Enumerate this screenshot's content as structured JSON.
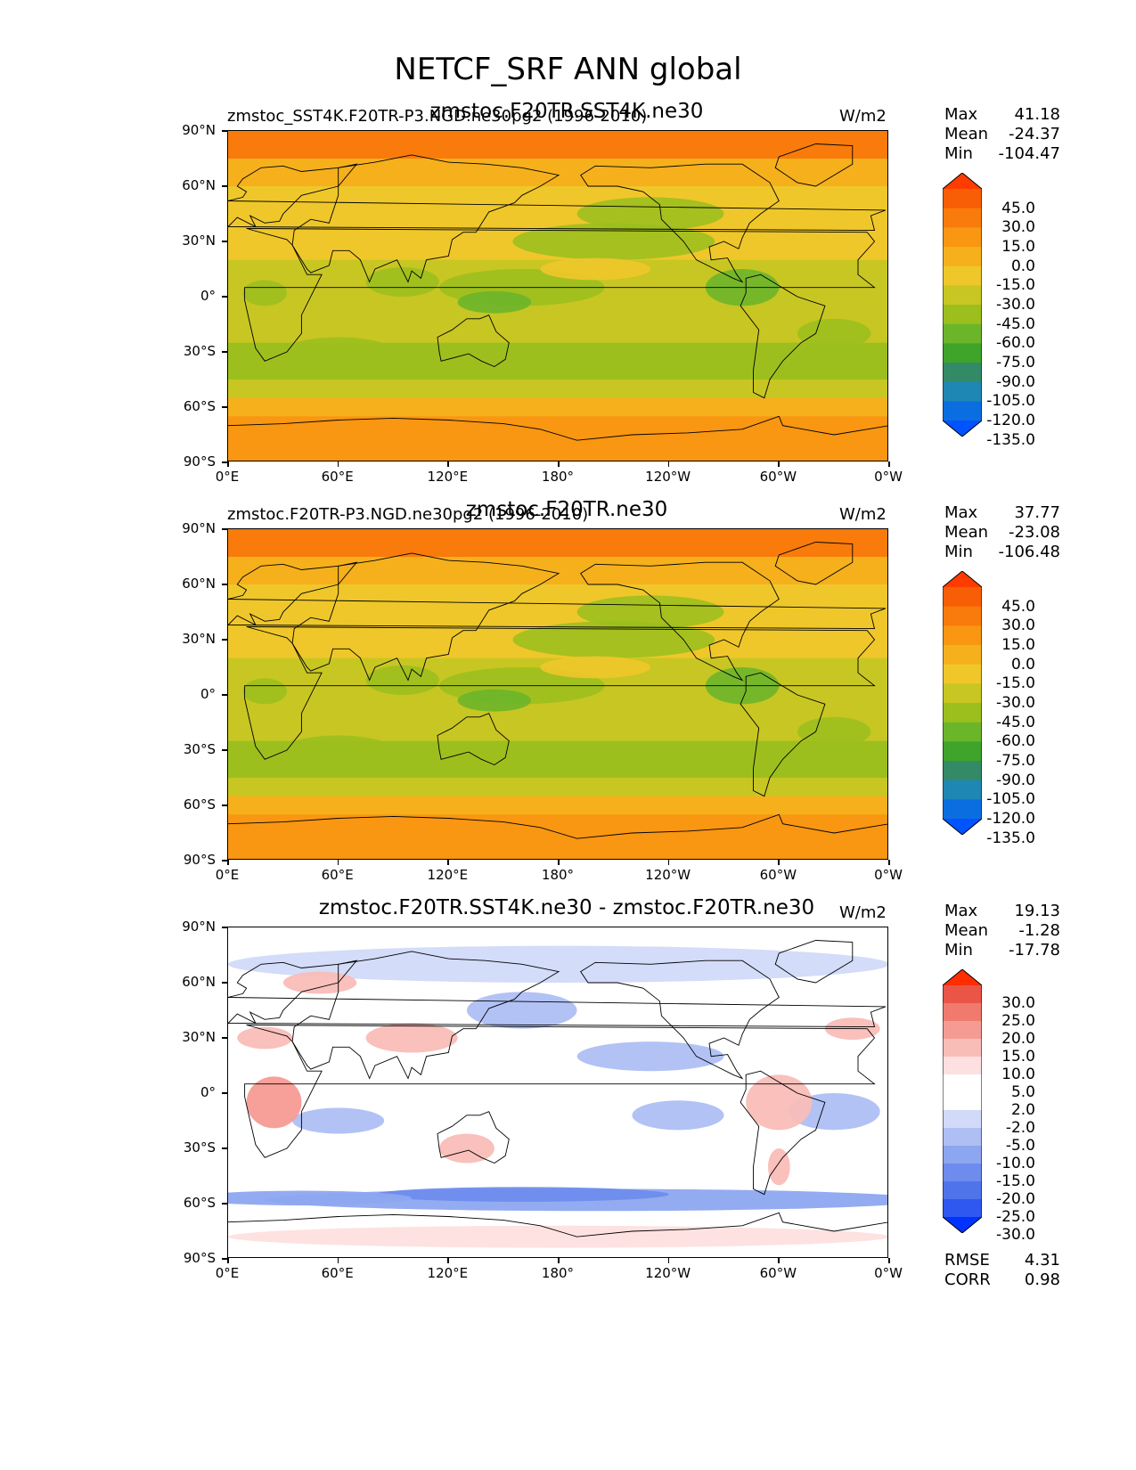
{
  "title": "NETCF_SRF ANN global",
  "lat_ticks": [
    "90°N",
    "60°N",
    "30°N",
    "0°",
    "30°S",
    "60°S",
    "90°S"
  ],
  "lon_ticks": [
    "0°E",
    "60°E",
    "120°E",
    "180°",
    "120°W",
    "60°W",
    "0°W"
  ],
  "colors": {
    "value_scale": [
      "#0053ff",
      "#0a6ee0",
      "#1f87b4",
      "#338a66",
      "#3ea42a",
      "#6bb52a",
      "#9cbf1e",
      "#c8c622",
      "#efc72a",
      "#f5b01c",
      "#f99612",
      "#f97b0b",
      "#f85e06",
      "#ff3c00"
    ],
    "diff_scale": [
      "#0033ff",
      "#2e58f0",
      "#4f74ea",
      "#6d8ced",
      "#8da6f0",
      "#aebff4",
      "#d1daf8",
      "#ffffff",
      "#fde0df",
      "#f9bdb8",
      "#f59b93",
      "#f07a6e",
      "#ea5547",
      "#ff2d00"
    ]
  },
  "panels": [
    {
      "left_title": "zmstoc_SST4K.F20TR-P3.NGD.ne30pg2 (1996-2010)",
      "center_title": "zmstoc.F20TR.SST4K.ne30",
      "units": "W/m2",
      "stats": {
        "max_label": "Max",
        "max": "41.18",
        "mean_label": "Mean",
        "mean": "-24.37",
        "min_label": "Min",
        "min": "-104.47"
      },
      "colorbar_labels": [
        "45.0",
        "30.0",
        "15.0",
        "0.0",
        "-15.0",
        "-30.0",
        "-45.0",
        "-60.0",
        "-75.0",
        "-90.0",
        "-105.0",
        "-120.0",
        "-135.0"
      ],
      "colorbar_colors": [
        "#ff3c00",
        "#f85e06",
        "#f97b0b",
        "#f99612",
        "#f5b01c",
        "#efc72a",
        "#c8c622",
        "#9cbf1e",
        "#6bb52a",
        "#3ea42a",
        "#338a66",
        "#1f87b4",
        "#0a6ee0",
        "#0053ff"
      ]
    },
    {
      "left_title": "zmstoc.F20TR-P3.NGD.ne30pg2 (1996-2010)",
      "center_title": "zmstoc.F20TR.ne30",
      "units": "W/m2",
      "stats": {
        "max_label": "Max",
        "max": "37.77",
        "mean_label": "Mean",
        "mean": "-23.08",
        "min_label": "Min",
        "min": "-106.48"
      },
      "colorbar_labels": [
        "45.0",
        "30.0",
        "15.0",
        "0.0",
        "-15.0",
        "-30.0",
        "-45.0",
        "-60.0",
        "-75.0",
        "-90.0",
        "-105.0",
        "-120.0",
        "-135.0"
      ],
      "colorbar_colors": [
        "#ff3c00",
        "#f85e06",
        "#f97b0b",
        "#f99612",
        "#f5b01c",
        "#efc72a",
        "#c8c622",
        "#9cbf1e",
        "#6bb52a",
        "#3ea42a",
        "#338a66",
        "#1f87b4",
        "#0a6ee0",
        "#0053ff"
      ]
    },
    {
      "left_title": "",
      "center_title": "zmstoc.F20TR.SST4K.ne30 - zmstoc.F20TR.ne30",
      "units": "W/m2",
      "stats": {
        "max_label": "Max",
        "max": "19.13",
        "mean_label": "Mean",
        "mean": "-1.28",
        "min_label": "Min",
        "min": "-17.78"
      },
      "colorbar_labels": [
        "30.0",
        "25.0",
        "20.0",
        "15.0",
        "10.0",
        "5.0",
        "2.0",
        "-2.0",
        "-5.0",
        "-10.0",
        "-15.0",
        "-20.0",
        "-25.0",
        "-30.0"
      ],
      "colorbar_colors": [
        "#ff2d00",
        "#ea5547",
        "#f07a6e",
        "#f59b93",
        "#f9bdb8",
        "#fde0df",
        "#ffffff",
        "#ffffff",
        "#d1daf8",
        "#aebff4",
        "#8da6f0",
        "#6d8ced",
        "#4f74ea",
        "#2e58f0",
        "#0033ff"
      ],
      "metrics": {
        "rmse_label": "RMSE",
        "rmse": "4.31",
        "corr_label": "CORR",
        "corr": "0.98"
      }
    }
  ],
  "chart_data": [
    {
      "type": "heatmap",
      "title": "zmstoc.F20TR.SST4K.ne30",
      "variable": "NETCF_SRF",
      "units": "W/m2",
      "x_ticks": [
        "0°E",
        "60°E",
        "120°E",
        "180°",
        "120°W",
        "60°W",
        "0°W"
      ],
      "y_ticks": [
        "90°N",
        "60°N",
        "30°N",
        "0°",
        "30°S",
        "60°S",
        "90°S"
      ],
      "xlim": [
        0,
        360
      ],
      "ylim": [
        -90,
        90
      ],
      "levels": [
        -135,
        -120,
        -105,
        -90,
        -75,
        -60,
        -45,
        -30,
        -15,
        0,
        15,
        30,
        45
      ],
      "max": 41.18,
      "mean": -24.37,
      "min": -104.47,
      "zonal_means": [
        {
          "lat": 80,
          "value": 5
        },
        {
          "lat": 60,
          "value": -8
        },
        {
          "lat": 40,
          "value": -22
        },
        {
          "lat": 20,
          "value": -38
        },
        {
          "lat": 0,
          "value": -45
        },
        {
          "lat": -20,
          "value": -38
        },
        {
          "lat": -40,
          "value": -38
        },
        {
          "lat": -55,
          "value": -12
        },
        {
          "lat": -75,
          "value": 8
        }
      ]
    },
    {
      "type": "heatmap",
      "title": "zmstoc.F20TR.ne30",
      "variable": "NETCF_SRF",
      "units": "W/m2",
      "x_ticks": [
        "0°E",
        "60°E",
        "120°E",
        "180°",
        "120°W",
        "60°W",
        "0°W"
      ],
      "y_ticks": [
        "90°N",
        "60°N",
        "30°N",
        "0°",
        "30°S",
        "60°S",
        "90°S"
      ],
      "xlim": [
        0,
        360
      ],
      "ylim": [
        -90,
        90
      ],
      "levels": [
        -135,
        -120,
        -105,
        -90,
        -75,
        -60,
        -45,
        -30,
        -15,
        0,
        15,
        30,
        45
      ],
      "max": 37.77,
      "mean": -23.08,
      "min": -106.48,
      "zonal_means": [
        {
          "lat": 80,
          "value": 8
        },
        {
          "lat": 60,
          "value": -5
        },
        {
          "lat": 40,
          "value": -20
        },
        {
          "lat": 20,
          "value": -36
        },
        {
          "lat": 0,
          "value": -48
        },
        {
          "lat": -20,
          "value": -38
        },
        {
          "lat": -40,
          "value": -40
        },
        {
          "lat": -55,
          "value": -8
        },
        {
          "lat": -75,
          "value": 10
        }
      ]
    },
    {
      "type": "heatmap",
      "title": "zmstoc.F20TR.SST4K.ne30 - zmstoc.F20TR.ne30",
      "variable": "NETCF_SRF",
      "units": "W/m2",
      "x_ticks": [
        "0°E",
        "60°E",
        "120°E",
        "180°",
        "120°W",
        "60°W",
        "0°W"
      ],
      "y_ticks": [
        "90°N",
        "60°N",
        "30°N",
        "0°",
        "30°S",
        "60°S",
        "90°S"
      ],
      "xlim": [
        0,
        360
      ],
      "ylim": [
        -90,
        90
      ],
      "levels": [
        -30,
        -25,
        -20,
        -15,
        -10,
        -5,
        -2,
        2,
        5,
        10,
        15,
        20,
        25,
        30
      ],
      "max": 19.13,
      "mean": -1.28,
      "min": -17.78,
      "rmse": 4.31,
      "corr": 0.98,
      "zonal_means": [
        {
          "lat": 80,
          "value": -2
        },
        {
          "lat": 60,
          "value": -3
        },
        {
          "lat": 40,
          "value": -1
        },
        {
          "lat": 20,
          "value": 0
        },
        {
          "lat": 0,
          "value": 2
        },
        {
          "lat": -20,
          "value": 0
        },
        {
          "lat": -40,
          "value": 1
        },
        {
          "lat": -55,
          "value": -7
        },
        {
          "lat": -75,
          "value": 3
        }
      ]
    }
  ]
}
